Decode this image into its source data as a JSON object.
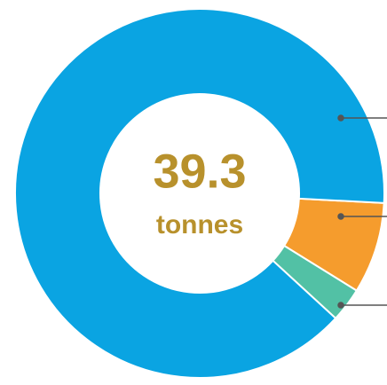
{
  "chart_data": {
    "type": "donut",
    "values": [
      8,
      3,
      89
    ],
    "colors": [
      "#f59c2d",
      "#52c1a5",
      "#0aa4e2"
    ],
    "center_value": 39.3,
    "center_unit": "tonnes"
  }
}
